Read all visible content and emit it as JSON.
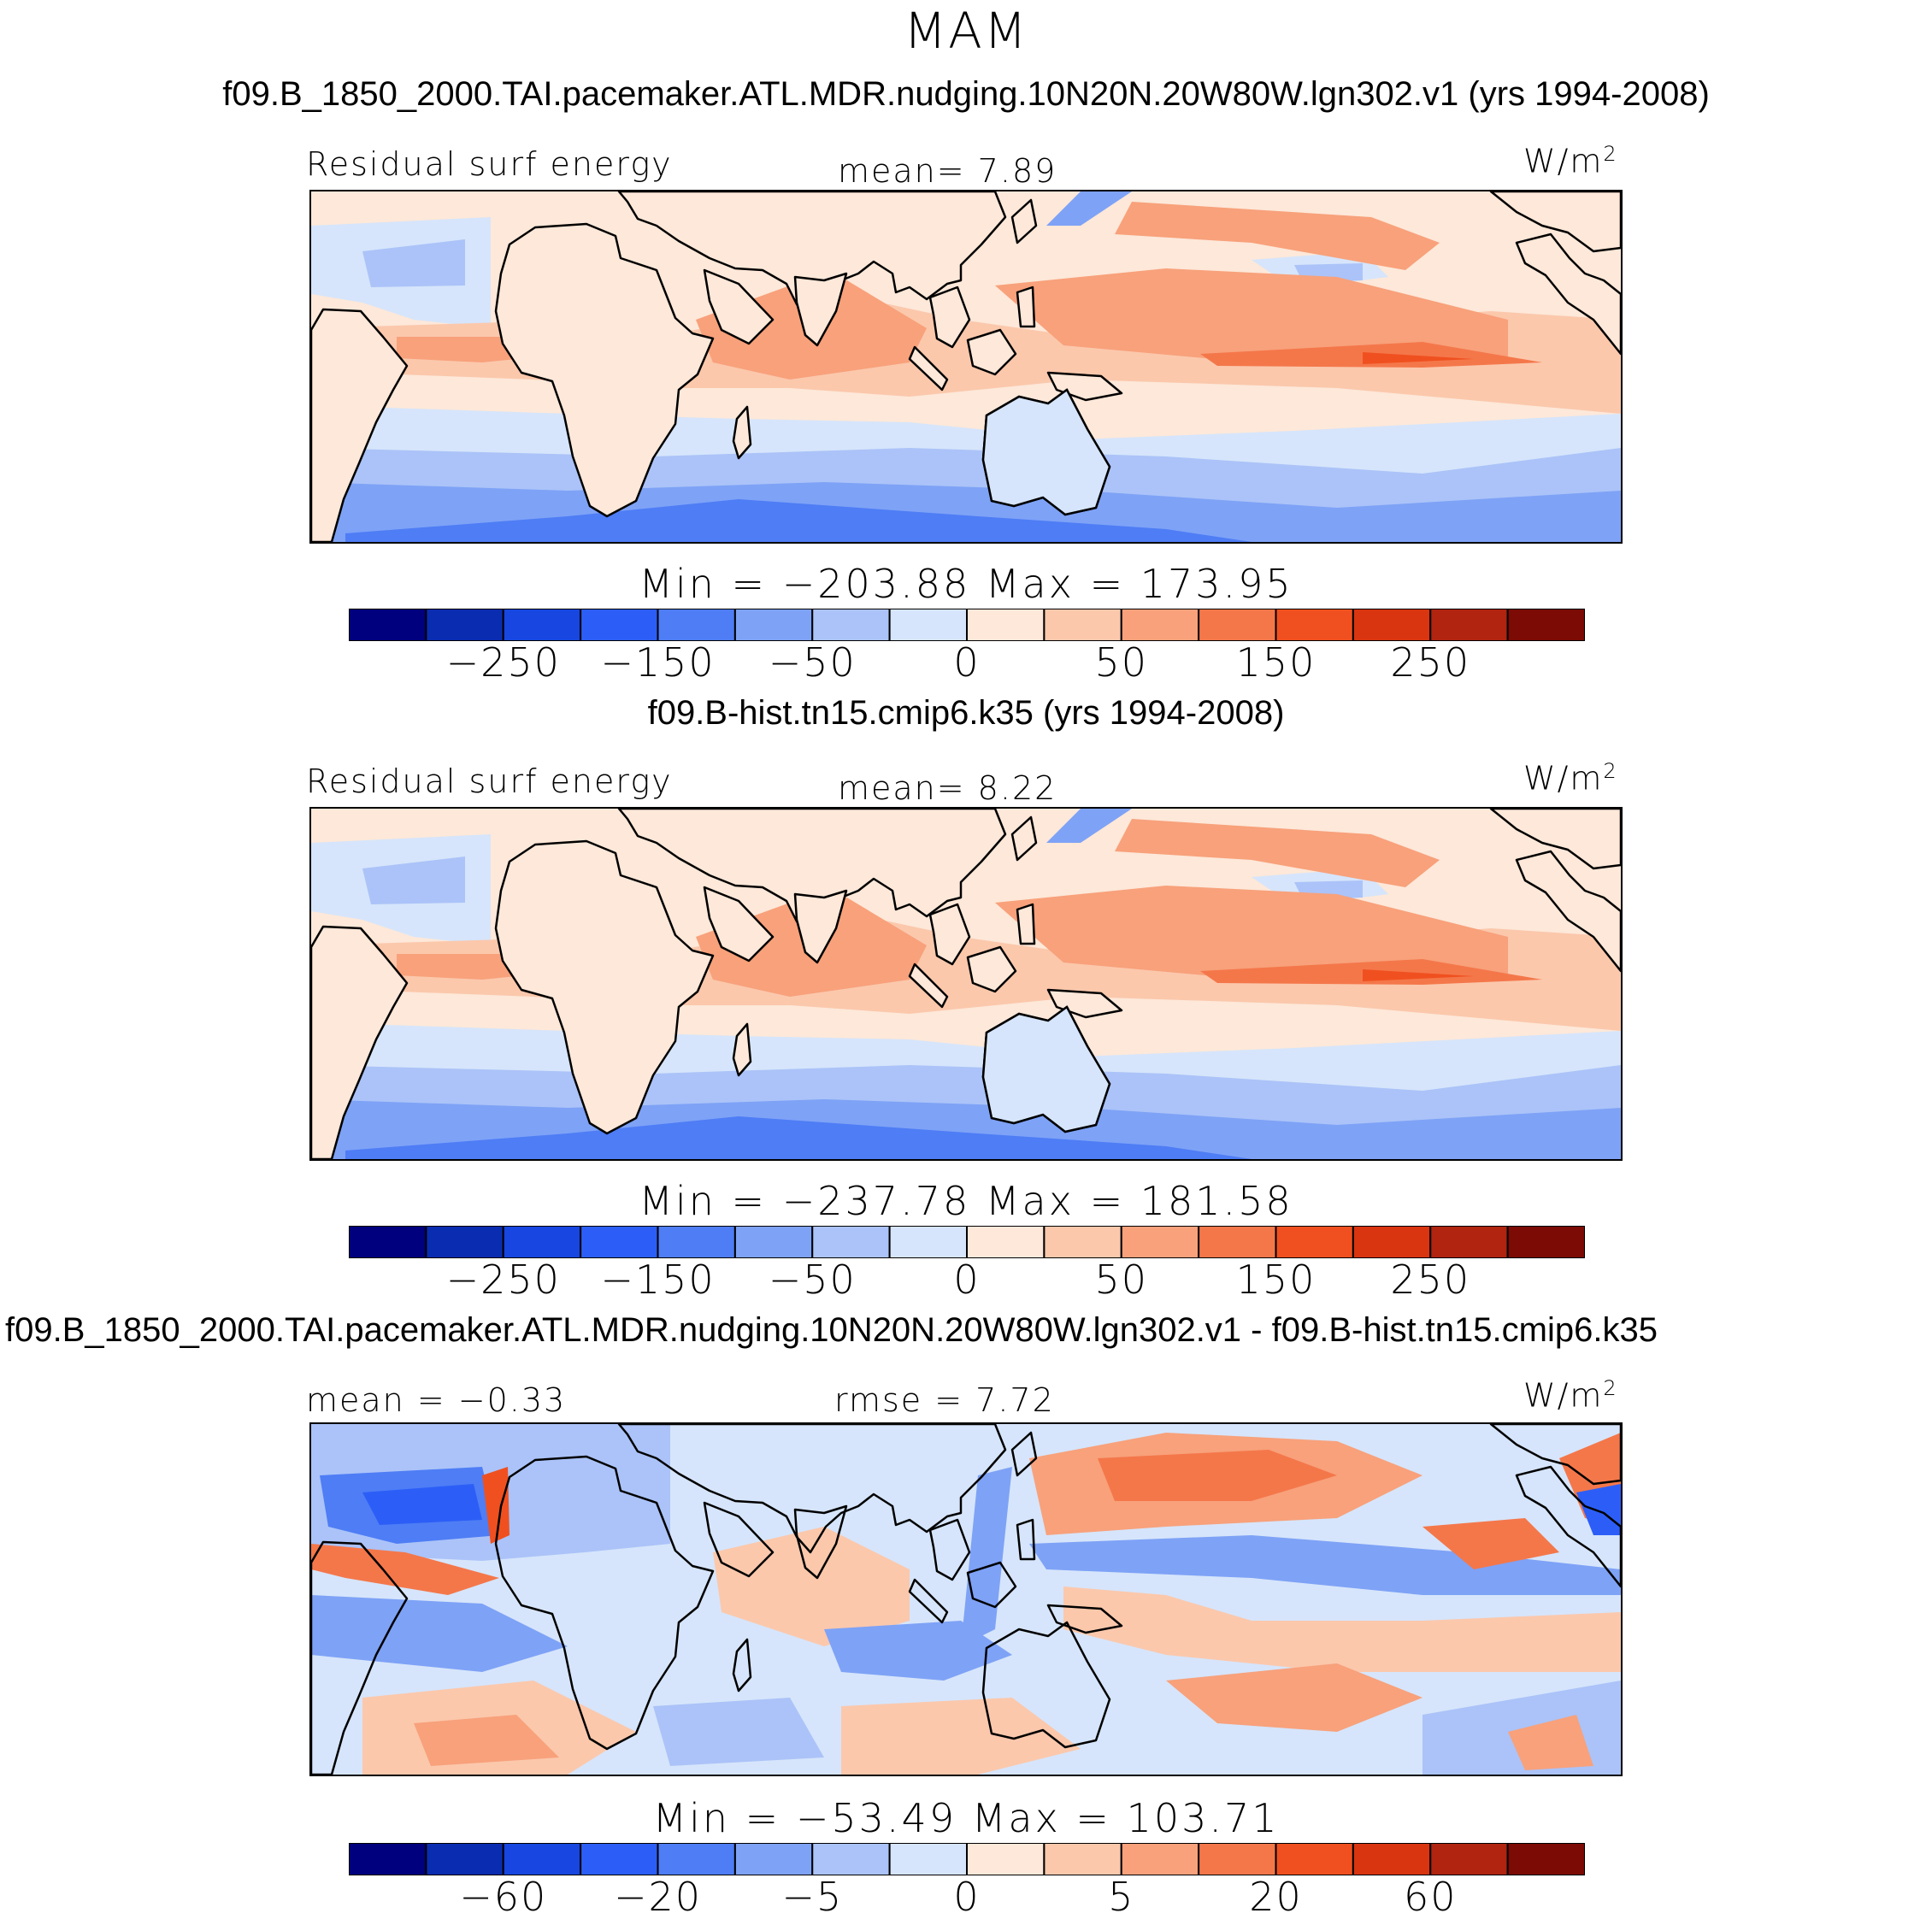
{
  "figure_title": "MAM",
  "colors": {
    "palette": [
      "#00007f",
      "#0a2cb0",
      "#1747e0",
      "#2c5ef7",
      "#4e7df5",
      "#7ea2f6",
      "#abc3f8",
      "#d6e5fb",
      "#fde8d9",
      "#fbc8ac",
      "#f8a17b",
      "#f4774a",
      "#f0501f",
      "#d93510",
      "#b02410",
      "#7c0a05"
    ],
    "land": "#fde8d9",
    "coast": "#000000"
  },
  "chart_data": [
    {
      "type": "heatmap",
      "title": "f09.B_1850_2000.TAI.pacemaker.ATL.MDR.nudging.10N20N.20W80W.lgn302.v1 (yrs 1994-2008)",
      "left_label": "Residual surf energy",
      "center_label": "mean=   7.89",
      "units": "W/m",
      "units_sup": "2",
      "mean": 7.89,
      "minmax_text": "Min = −203.88 Max = 173.95",
      "min": -203.88,
      "max": 173.95,
      "colorbar_levels": [
        -300,
        -250,
        -200,
        -150,
        -100,
        -50,
        -25,
        0,
        25,
        50,
        100,
        150,
        200,
        250,
        300
      ],
      "colorbar_tick_labels": [
        "−250",
        "−150",
        "−50",
        "0",
        "50",
        "150",
        "250"
      ],
      "variant": "mean"
    },
    {
      "type": "heatmap",
      "title": "f09.B-hist.tn15.cmip6.k35 (yrs 1994-2008)",
      "left_label": "Residual surf energy",
      "center_label": "mean=   8.22",
      "units": "W/m",
      "units_sup": "2",
      "mean": 8.22,
      "minmax_text": "Min = −237.78 Max = 181.58",
      "min": -237.78,
      "max": 181.58,
      "colorbar_levels": [
        -300,
        -250,
        -200,
        -150,
        -100,
        -50,
        -25,
        0,
        25,
        50,
        100,
        150,
        200,
        250,
        300
      ],
      "colorbar_tick_labels": [
        "−250",
        "−150",
        "−50",
        "0",
        "50",
        "150",
        "250"
      ],
      "variant": "mean"
    },
    {
      "type": "heatmap",
      "title": "f09.B_1850_2000.TAI.pacemaker.ATL.MDR.nudging.10N20N.20W80W.lgn302.v1 - f09.B-hist.tn15.cmip6.k35",
      "left_label": "mean =  −0.33",
      "center_label": "rmse =    7.72",
      "units": "W/m",
      "units_sup": "2",
      "mean": -0.33,
      "rmse": 7.72,
      "minmax_text": "Min = −53.49 Max = 103.71",
      "min": -53.49,
      "max": 103.71,
      "colorbar_levels": [
        -80,
        -60,
        -40,
        -20,
        -10,
        -5,
        -2,
        0,
        2,
        5,
        10,
        20,
        40,
        60,
        80
      ],
      "colorbar_tick_labels": [
        "−60",
        "−20",
        "−5",
        "0",
        "5",
        "20",
        "60"
      ],
      "variant": "diff"
    }
  ]
}
